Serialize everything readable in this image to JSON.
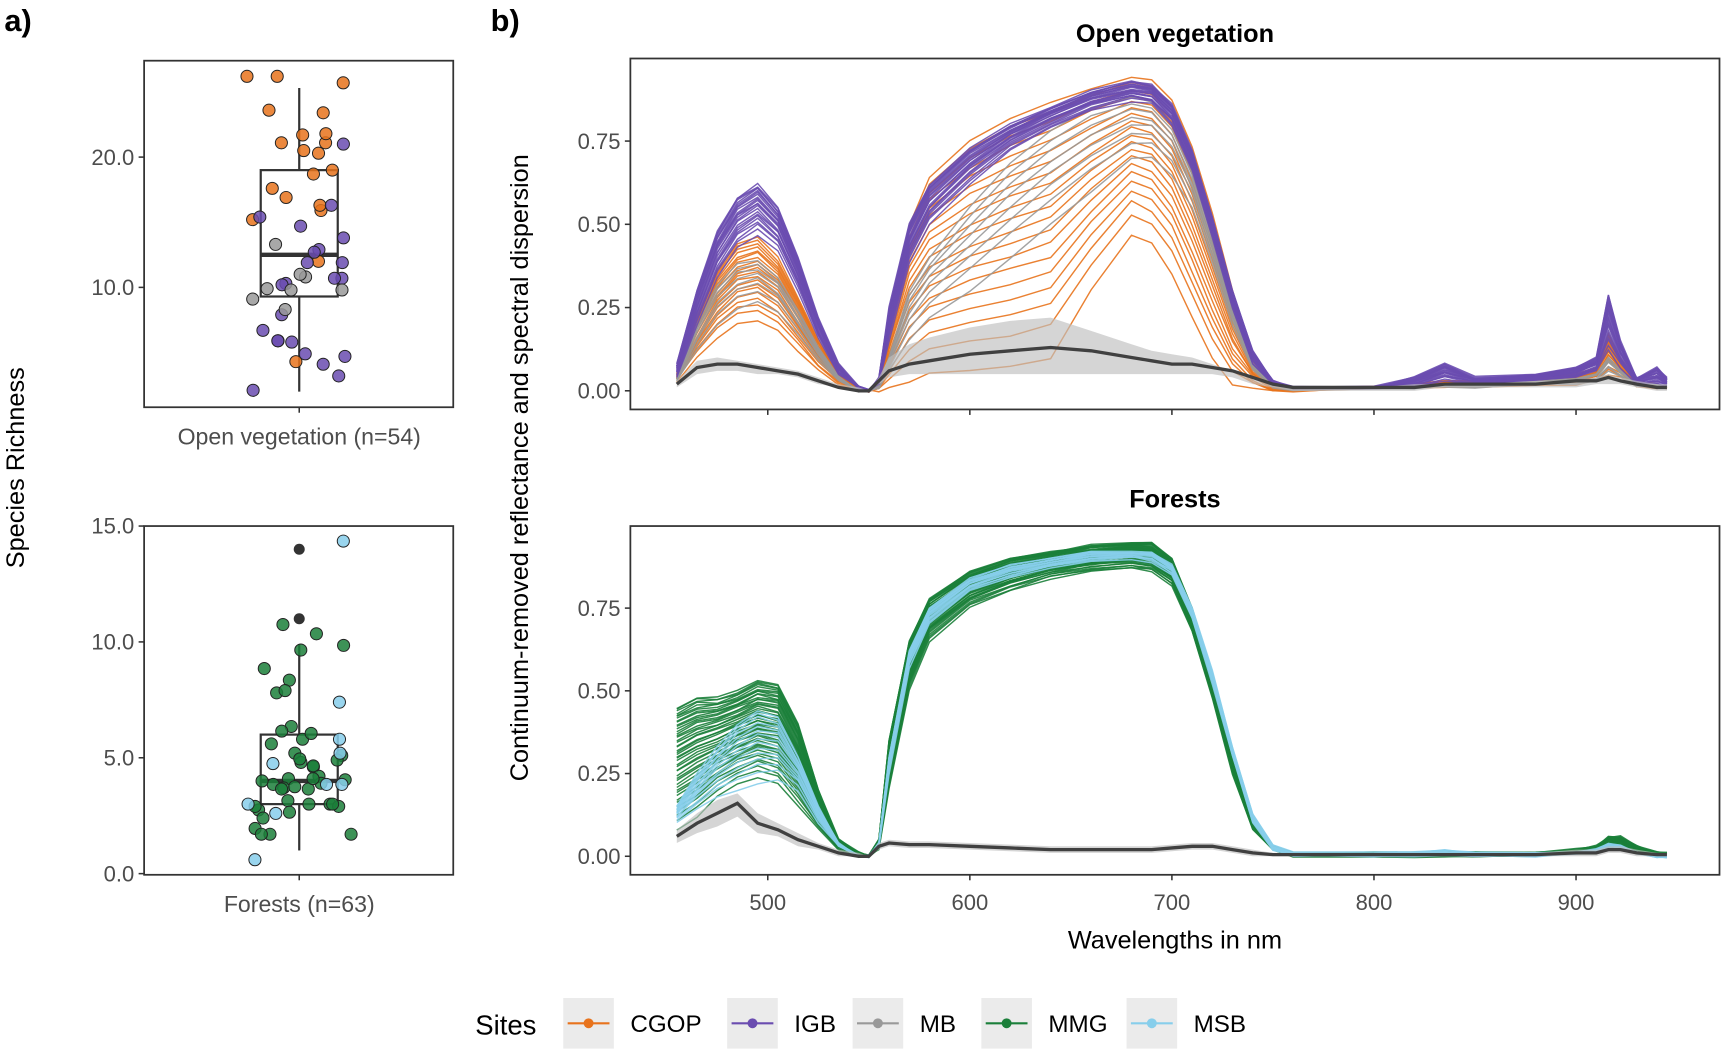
{
  "chart_data": [
    {
      "type": "box",
      "panel_label": "a)",
      "ylabel": "Species Richness",
      "facets": [
        {
          "category": "Open vegetation (n=54)",
          "ylim": [
            0.8,
            27.4
          ],
          "yticks": [
            10.0,
            20.0
          ],
          "ytick_labels": [
            "10.0",
            "20.0"
          ],
          "box": {
            "whisker_low": 2.0,
            "q1": 9.3,
            "median": 12.5,
            "q3": 19.0,
            "whisker_high": 25.3
          },
          "outliers": [],
          "points": {
            "CGOP": [
              26.2,
              25.7,
              26.2,
              23.6,
              23.4,
              21.7,
              21.1,
              21.1,
              21.8,
              20.5,
              20.3,
              18.7,
              19.0,
              17.6,
              16.9,
              15.9,
              16.3,
              15.2,
              12.0,
              4.3
            ],
            "IGB": [
              21.0,
              16.3,
              15.4,
              14.7,
              13.8,
              12.9,
              12.7,
              11.9,
              11.9,
              10.7,
              10.3,
              10.2,
              10.7,
              7.9,
              6.7,
              5.9,
              5.8,
              5.9,
              4.7,
              4.9,
              4.1,
              3.2,
              2.1
            ],
            "MB": [
              13.3,
              10.8,
              11.0,
              9.8,
              9.9,
              9.8,
              9.1,
              8.3
            ]
          }
        },
        {
          "category": "Forests (n=63)",
          "ylim": [
            -0.05,
            15.0
          ],
          "yticks": [
            0.0,
            5.0,
            10.0,
            15.0
          ],
          "ytick_labels": [
            "0.0",
            "5.0",
            "10.0",
            "15.0"
          ],
          "box": {
            "whisker_low": 1.0,
            "q1": 3.0,
            "median": 4.0,
            "q3": 6.0,
            "whisker_high": 9.9
          },
          "outliers": [
            14.0,
            11.0
          ],
          "points": {
            "MMG": [
              10.75,
              10.35,
              9.85,
              9.65,
              8.85,
              8.35,
              7.8,
              7.9,
              6.35,
              6.15,
              5.8,
              6.05,
              5.6,
              5.1,
              5.2,
              4.9,
              4.6,
              4.65,
              4.8,
              4.95,
              4.2,
              4.05,
              4.1,
              3.9,
              3.85,
              3.65,
              3.7,
              3.65,
              3.15,
              3.0,
              2.9,
              2.75,
              3.0,
              2.9,
              2.65,
              2.4,
              1.95,
              1.7,
              1.7,
              4.1,
              4.0,
              3.75,
              3.0,
              1.7
            ],
            "MSB": [
              14.35,
              7.4,
              5.2,
              5.8,
              3.85,
              3.85,
              2.6,
              3.0,
              4.75,
              0.6
            ]
          }
        }
      ]
    },
    {
      "type": "line",
      "panel_label": "b)",
      "xlabel": "Wavelengths in nm",
      "ylabel": "Continuum-removed reflectance and spectral dispersion",
      "xlim": [
        432,
        971
      ],
      "ylim": [
        -0.056,
        0.998
      ],
      "xticks": [
        500,
        600,
        700,
        800,
        900
      ],
      "xtick_labels": [
        "500",
        "600",
        "700",
        "800",
        "900"
      ],
      "yticks": [
        0.0,
        0.25,
        0.5,
        0.75
      ],
      "ytick_labels": [
        "0.00",
        "0.25",
        "0.50",
        "0.75"
      ],
      "wavelengths": [
        455,
        465,
        475,
        485,
        495,
        505,
        515,
        525,
        535,
        545,
        550,
        555,
        560,
        570,
        580,
        600,
        620,
        640,
        660,
        680,
        690,
        700,
        710,
        720,
        730,
        740,
        750,
        760,
        800,
        820,
        835,
        850,
        880,
        900,
        910,
        916,
        922,
        930,
        940,
        945
      ],
      "facets": [
        {
          "title": "Open vegetation",
          "sites": [
            {
              "name": "CGOP",
              "curves": 20,
              "high": [
                0.05,
                0.22,
                0.36,
                0.44,
                0.46,
                0.4,
                0.28,
                0.15,
                0.05,
                0.01,
                0,
                0.03,
                0.2,
                0.5,
                0.64,
                0.75,
                0.82,
                0.87,
                0.91,
                0.94,
                0.93,
                0.87,
                0.73,
                0.53,
                0.3,
                0.1,
                0.02,
                0.01,
                0.01,
                0.02,
                0.03,
                0.03,
                0.04,
                0.05,
                0.07,
                0.17,
                0.1,
                0.03,
                0.02,
                0.01
              ],
              "low": [
                0.03,
                0.1,
                0.16,
                0.2,
                0.21,
                0.18,
                0.12,
                0.06,
                0.02,
                0,
                0,
                0,
                0.01,
                0.03,
                0.05,
                0.06,
                0.07,
                0.1,
                0.3,
                0.47,
                0.44,
                0.35,
                0.22,
                0.1,
                0.02,
                0.01,
                0,
                0,
                0.01,
                0.01,
                0.01,
                0.01,
                0.02,
                0.02,
                0.03,
                0.05,
                0.04,
                0.01,
                0.01,
                0.01
              ]
            },
            {
              "name": "MB",
              "curves": 8,
              "high": [
                0.04,
                0.2,
                0.32,
                0.38,
                0.39,
                0.34,
                0.24,
                0.13,
                0.04,
                0,
                0,
                0.02,
                0.1,
                0.3,
                0.4,
                0.55,
                0.68,
                0.78,
                0.85,
                0.88,
                0.87,
                0.8,
                0.66,
                0.46,
                0.25,
                0.08,
                0.02,
                0.01,
                0.01,
                0.01,
                0.02,
                0.02,
                0.03,
                0.04,
                0.05,
                0.1,
                0.06,
                0.02,
                0.02,
                0.01
              ],
              "low": [
                0.03,
                0.12,
                0.2,
                0.25,
                0.27,
                0.24,
                0.17,
                0.09,
                0.03,
                0,
                0,
                0.01,
                0.06,
                0.15,
                0.22,
                0.3,
                0.4,
                0.5,
                0.6,
                0.7,
                0.7,
                0.65,
                0.55,
                0.38,
                0.2,
                0.06,
                0.01,
                0,
                0.01,
                0.01,
                0.01,
                0.01,
                0.02,
                0.02,
                0.03,
                0.06,
                0.04,
                0.01,
                0.01,
                0.01
              ]
            },
            {
              "name": "IGB",
              "curves": 22,
              "high": [
                0.08,
                0.3,
                0.48,
                0.58,
                0.62,
                0.55,
                0.4,
                0.22,
                0.08,
                0.01,
                0,
                0.04,
                0.25,
                0.5,
                0.62,
                0.73,
                0.8,
                0.85,
                0.9,
                0.93,
                0.92,
                0.86,
                0.72,
                0.52,
                0.3,
                0.12,
                0.03,
                0.01,
                0.01,
                0.04,
                0.08,
                0.04,
                0.05,
                0.07,
                0.1,
                0.29,
                0.15,
                0.04,
                0.07,
                0.04
              ],
              "low": [
                0.04,
                0.2,
                0.34,
                0.43,
                0.47,
                0.42,
                0.3,
                0.16,
                0.05,
                0.01,
                0,
                0.02,
                0.15,
                0.38,
                0.5,
                0.62,
                0.72,
                0.79,
                0.84,
                0.87,
                0.86,
                0.8,
                0.66,
                0.46,
                0.25,
                0.08,
                0.02,
                0.01,
                0.01,
                0.01,
                0.03,
                0.02,
                0.03,
                0.04,
                0.06,
                0.12,
                0.07,
                0.02,
                0.02,
                0.01
              ]
            }
          ],
          "dispersion": {
            "mean": [
              0.02,
              0.07,
              0.08,
              0.08,
              0.07,
              0.06,
              0.05,
              0.03,
              0.01,
              0,
              0,
              0.03,
              0.06,
              0.08,
              0.09,
              0.11,
              0.12,
              0.13,
              0.12,
              0.1,
              0.09,
              0.08,
              0.08,
              0.07,
              0.06,
              0.04,
              0.02,
              0.01,
              0.01,
              0.01,
              0.02,
              0.02,
              0.02,
              0.03,
              0.03,
              0.04,
              0.03,
              0.02,
              0.01,
              0.01
            ],
            "high": [
              0.03,
              0.09,
              0.1,
              0.09,
              0.08,
              0.07,
              0.06,
              0.04,
              0.02,
              0.01,
              0,
              0.04,
              0.1,
              0.14,
              0.16,
              0.19,
              0.21,
              0.22,
              0.18,
              0.14,
              0.12,
              0.11,
              0.1,
              0.08,
              0.06,
              0.04,
              0.02,
              0.01,
              0.01,
              0.02,
              0.02,
              0.02,
              0.03,
              0.03,
              0.04,
              0.05,
              0.04,
              0.03,
              0.02,
              0.02
            ],
            "low": [
              0.01,
              0.05,
              0.06,
              0.06,
              0.05,
              0.05,
              0.04,
              0.02,
              0.01,
              0,
              0,
              0.02,
              0.04,
              0.05,
              0.05,
              0.05,
              0.05,
              0.05,
              0.05,
              0.05,
              0.05,
              0.05,
              0.05,
              0.05,
              0.04,
              0.02,
              0.01,
              0,
              0,
              0,
              0.01,
              0.01,
              0.01,
              0.01,
              0.02,
              0.02,
              0.02,
              0.01,
              0,
              0
            ]
          }
        },
        {
          "title": "Forests",
          "sites": [
            {
              "name": "MMG",
              "curves": 45,
              "high": [
                0.45,
                0.48,
                0.48,
                0.5,
                0.53,
                0.52,
                0.4,
                0.2,
                0.05,
                0.01,
                0,
                0.05,
                0.35,
                0.65,
                0.78,
                0.86,
                0.9,
                0.92,
                0.94,
                0.95,
                0.95,
                0.9,
                0.75,
                0.55,
                0.32,
                0.12,
                0.03,
                0.01,
                0.01,
                0.01,
                0.01,
                0.01,
                0.01,
                0.02,
                0.03,
                0.06,
                0.06,
                0.03,
                0.01,
                0.01
              ],
              "low": [
                0.08,
                0.12,
                0.18,
                0.22,
                0.24,
                0.22,
                0.15,
                0.08,
                0.02,
                0,
                0,
                0.02,
                0.2,
                0.5,
                0.65,
                0.75,
                0.8,
                0.84,
                0.86,
                0.87,
                0.86,
                0.82,
                0.68,
                0.48,
                0.25,
                0.08,
                0.02,
                0,
                0,
                0,
                0,
                0,
                0,
                0.01,
                0.01,
                0.02,
                0.02,
                0.01,
                0,
                0
              ]
            },
            {
              "name": "MSB",
              "curves": 15,
              "high": [
                0.15,
                0.25,
                0.33,
                0.4,
                0.44,
                0.42,
                0.3,
                0.15,
                0.04,
                0,
                0,
                0.04,
                0.3,
                0.62,
                0.75,
                0.84,
                0.88,
                0.9,
                0.92,
                0.92,
                0.92,
                0.88,
                0.75,
                0.56,
                0.33,
                0.13,
                0.03,
                0.01,
                0.01,
                0.01,
                0.02,
                0.01,
                0.01,
                0.01,
                0.02,
                0.04,
                0.03,
                0.01,
                0,
                0
              ],
              "low": [
                0.1,
                0.14,
                0.18,
                0.2,
                0.22,
                0.23,
                0.2,
                0.1,
                0.03,
                0,
                0,
                0.03,
                0.25,
                0.57,
                0.7,
                0.8,
                0.84,
                0.87,
                0.89,
                0.9,
                0.89,
                0.85,
                0.72,
                0.52,
                0.3,
                0.1,
                0.02,
                0,
                0,
                0,
                0,
                0,
                0,
                0.01,
                0.01,
                0.02,
                0.02,
                0.01,
                0,
                0
              ]
            }
          ],
          "dispersion": {
            "mean": [
              0.06,
              0.1,
              0.13,
              0.16,
              0.1,
              0.08,
              0.05,
              0.03,
              0.01,
              0,
              0,
              0.03,
              0.04,
              0.035,
              0.035,
              0.03,
              0.025,
              0.02,
              0.02,
              0.02,
              0.02,
              0.025,
              0.03,
              0.03,
              0.02,
              0.01,
              0.005,
              0.005,
              0.005,
              0.005,
              0.005,
              0.005,
              0.005,
              0.01,
              0.01,
              0.02,
              0.02,
              0.01,
              0.005,
              0.005
            ],
            "high": [
              0.08,
              0.13,
              0.17,
              0.19,
              0.13,
              0.1,
              0.07,
              0.04,
              0.02,
              0.01,
              0,
              0.04,
              0.05,
              0.045,
              0.045,
              0.04,
              0.035,
              0.03,
              0.03,
              0.03,
              0.03,
              0.035,
              0.04,
              0.04,
              0.03,
              0.02,
              0.01,
              0.01,
              0.01,
              0.01,
              0.01,
              0.01,
              0.01,
              0.02,
              0.02,
              0.03,
              0.03,
              0.02,
              0.01,
              0.01
            ],
            "low": [
              0.04,
              0.07,
              0.09,
              0.12,
              0.07,
              0.06,
              0.03,
              0.02,
              0,
              0,
              0,
              0.02,
              0.03,
              0.025,
              0.025,
              0.02,
              0.015,
              0.01,
              0.01,
              0.01,
              0.01,
              0.015,
              0.02,
              0.02,
              0.01,
              0,
              0,
              0,
              0,
              0,
              0,
              0,
              0,
              0,
              0,
              0.01,
              0.01,
              0,
              0,
              0
            ]
          }
        }
      ]
    }
  ],
  "legend": {
    "title": "Sites",
    "placement": "bottom",
    "items": [
      {
        "label": "CGOP",
        "color": "#E8731C"
      },
      {
        "label": "IGB",
        "color": "#6A4CB0"
      },
      {
        "label": "MB",
        "color": "#999999"
      },
      {
        "label": "MMG",
        "color": "#1B7F3A"
      },
      {
        "label": "MSB",
        "color": "#87CEEB"
      }
    ]
  },
  "colors": {
    "dispersion_band": "#BEBEBE",
    "dispersion_mean": "#404040",
    "outlier": "#333333"
  }
}
